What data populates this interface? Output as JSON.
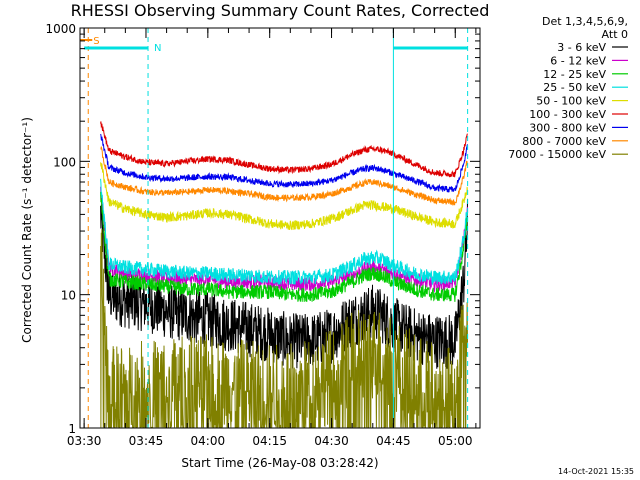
{
  "chart_data": {
    "type": "line",
    "title": "RHESSI Observing Summary Count Rates, Corrected",
    "xlabel": "Start Time (26-May-08 03:28:42)",
    "ylabel": "Corrected Count Rate (s⁻¹ detector⁻¹)",
    "xscale": "time",
    "yscale": "log",
    "xlim": [
      "03:29:00",
      "05:06:00"
    ],
    "ylim": [
      1,
      1000
    ],
    "x_ticks": [
      "03:30",
      "03:45",
      "04:00",
      "04:15",
      "04:30",
      "04:45",
      "05:00"
    ],
    "y_ticks": [
      {
        "value": 1,
        "label": "1"
      },
      {
        "value": 10,
        "label": "10"
      },
      {
        "value": 100,
        "label": "100"
      },
      {
        "value": 1000,
        "label": "1000"
      }
    ],
    "legend_header": [
      "Det 1,3,4,5,6,9,",
      "Att 0"
    ],
    "legend_position": "right",
    "timestamp": "14-Oct-2021 15:35",
    "x_times": [
      "03:34",
      "03:36",
      "03:40",
      "03:45",
      "03:50",
      "03:55",
      "04:00",
      "04:05",
      "04:10",
      "04:15",
      "04:20",
      "04:25",
      "04:30",
      "04:35",
      "04:38",
      "04:40",
      "04:42",
      "04:45",
      "04:50",
      "04:55",
      "05:00",
      "05:02",
      "05:03"
    ],
    "series": [
      {
        "name": "3 - 6 keV",
        "color": "#000000",
        "values": [
          40,
          10,
          9,
          8.5,
          7.5,
          7,
          6.5,
          6,
          5.5,
          5,
          4.5,
          4.5,
          5,
          6.5,
          7,
          7.5,
          7,
          6,
          5,
          4.5,
          4.5,
          12,
          35
        ]
      },
      {
        "name": "6 - 12 keV",
        "color": "#cc00cc",
        "values": [
          60,
          16,
          14.5,
          14,
          13.5,
          13,
          13,
          12.5,
          12.5,
          12.5,
          12,
          12,
          12.5,
          14,
          15.5,
          16,
          15.5,
          14.5,
          13,
          12,
          12.5,
          25,
          45
        ]
      },
      {
        "name": "12 - 25 keV",
        "color": "#00cc00",
        "values": [
          55,
          13,
          12.5,
          12,
          11.5,
          11,
          11,
          10.5,
          10.5,
          10.5,
          10,
          10,
          10.5,
          12.5,
          14,
          14.5,
          14,
          12.5,
          11,
          10,
          10,
          22,
          40
        ]
      },
      {
        "name": "25 - 50 keV",
        "color": "#00e0e0",
        "values": [
          70,
          17,
          16,
          15.5,
          15,
          14.5,
          14.5,
          14,
          14,
          13.5,
          13.5,
          13.5,
          14,
          16.5,
          18.5,
          19,
          18.5,
          16.5,
          14.5,
          13.5,
          13.5,
          26,
          45
        ]
      },
      {
        "name": "50 - 100 keV",
        "color": "#dddd00",
        "values": [
          100,
          50,
          44,
          40,
          38,
          39,
          41,
          40,
          37,
          34,
          33,
          34,
          37,
          43,
          47,
          47,
          46,
          44,
          39,
          35,
          34,
          50,
          65
        ]
      },
      {
        "name": "100 - 300 keV",
        "color": "#dd0000",
        "values": [
          200,
          120,
          108,
          98,
          96,
          100,
          104,
          102,
          94,
          88,
          86,
          88,
          95,
          112,
          122,
          124,
          122,
          114,
          96,
          82,
          80,
          120,
          160
        ]
      },
      {
        "name": "300 - 800 keV",
        "color": "#0000ee",
        "values": [
          160,
          90,
          82,
          76,
          74,
          75,
          77,
          76,
          72,
          68,
          67,
          68,
          72,
          82,
          88,
          89,
          87,
          81,
          72,
          63,
          61,
          95,
          130
        ]
      },
      {
        "name": "800 - 7000 keV",
        "color": "#ff8800",
        "values": [
          130,
          70,
          64,
          59,
          58,
          59,
          61,
          60,
          57,
          54,
          53,
          54,
          57,
          64,
          69,
          70,
          68,
          64,
          57,
          51,
          49,
          75,
          105
        ]
      },
      {
        "name": "7000 - 15000 keV",
        "color": "#808000",
        "values": [
          20,
          1.8,
          1.9,
          2.0,
          2.1,
          2.2,
          2.2,
          2.1,
          2.0,
          1.9,
          1.9,
          2.1,
          2.5,
          3.2,
          3.6,
          3.7,
          3.5,
          3.0,
          2.3,
          1.9,
          1.8,
          5,
          9
        ]
      }
    ],
    "annotations": {
      "markers": [
        {
          "label": "S",
          "time": "03:31:00",
          "color": "#ff8800"
        },
        {
          "label": "N",
          "time": "03:30:00",
          "end": "03:45:30",
          "color": "#00e0e0"
        },
        {
          "label": "",
          "time": "04:45:00",
          "end": "05:03:00",
          "color": "#00e0e0"
        }
      ],
      "vlines_solid": [
        {
          "time": "03:29:00",
          "color": "#00e0e0"
        },
        {
          "time": "04:45:00",
          "color": "#00e0e0"
        }
      ],
      "vlines_dashed": [
        {
          "time": "03:31:00",
          "color": "#ff8800"
        },
        {
          "time": "03:45:30",
          "color": "#00e0e0"
        },
        {
          "time": "05:03:00",
          "color": "#00e0e0"
        }
      ]
    }
  }
}
